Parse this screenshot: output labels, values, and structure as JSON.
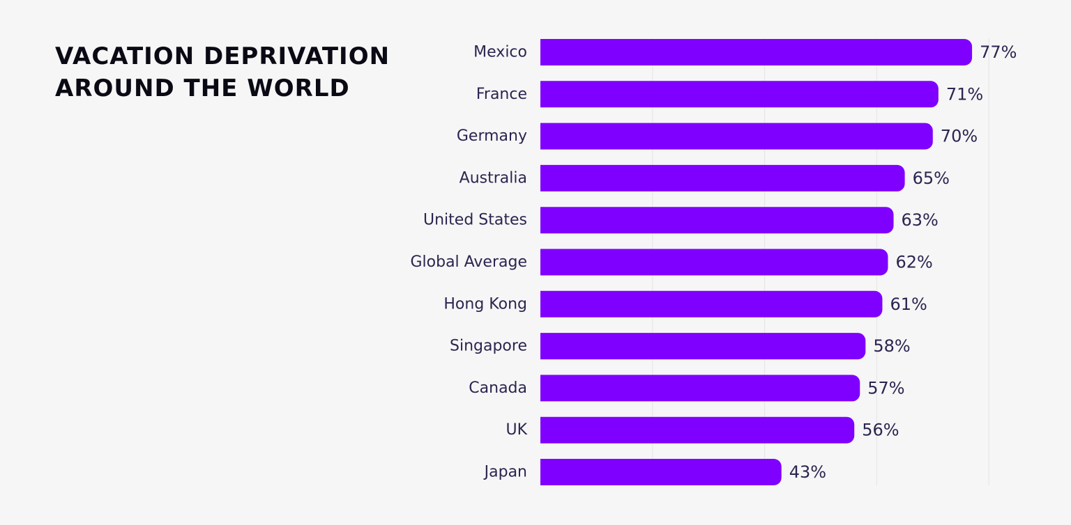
{
  "title_lines": [
    "VACATION DEPRIVATION",
    "AROUND THE WORLD"
  ],
  "colors": {
    "bar": "#8000ff",
    "text": "#2a2550",
    "title": "#0a0a14",
    "grid": "#e4e4e4",
    "background": "#f6f6f6"
  },
  "chart_data": {
    "type": "bar",
    "orientation": "horizontal",
    "title": "VACATION DEPRIVATION AROUND THE WORLD",
    "categories": [
      "Mexico",
      "France",
      "Germany",
      "Australia",
      "United States",
      "Global Average",
      "Hong Kong",
      "Singapore",
      "Canada",
      "UK",
      "Japan"
    ],
    "values": [
      77,
      71,
      70,
      65,
      63,
      62,
      61,
      58,
      57,
      56,
      43
    ],
    "value_labels": [
      "77%",
      "71%",
      "70%",
      "65%",
      "63%",
      "62%",
      "61%",
      "58%",
      "57%",
      "56%",
      "43%"
    ],
    "unit": "%",
    "xlim": [
      0,
      80
    ],
    "grid": true,
    "legend": "none"
  }
}
